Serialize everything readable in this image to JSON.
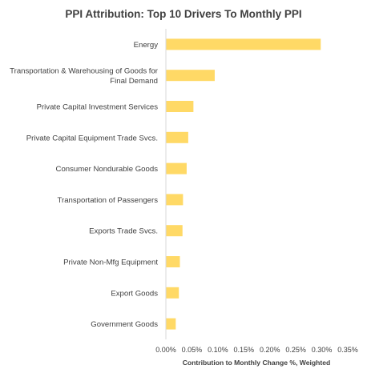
{
  "chart_data": {
    "type": "bar",
    "orientation": "horizontal",
    "title": "PPI Attribution: Top 10 Drivers To Monthly PPI",
    "xlabel": "Contribution to Monthly Change %, Weighted",
    "ylabel": "",
    "xlim": [
      0,
      0.35
    ],
    "x_ticks": [
      0,
      0.05,
      0.1,
      0.15,
      0.2,
      0.25,
      0.3,
      0.35
    ],
    "x_tick_labels": [
      "0.00%",
      "0.05%",
      "0.10%",
      "0.15%",
      "0.20%",
      "0.25%",
      "0.30%",
      "0.35%"
    ],
    "categories": [
      [
        "Energy"
      ],
      [
        "Transportation & Warehousing of Goods for",
        "Final Demand"
      ],
      [
        "Private Capital Investment Services"
      ],
      [
        "Private Capital Equipment Trade Svcs."
      ],
      [
        "Consumer Nondurable Goods"
      ],
      [
        "Transportation of Passengers"
      ],
      [
        "Exports Trade Svcs."
      ],
      [
        "Private Non-Mfg Equipment"
      ],
      [
        "Export Goods"
      ],
      [
        "Government Goods"
      ]
    ],
    "values": [
      0.298,
      0.094,
      0.053,
      0.043,
      0.04,
      0.033,
      0.032,
      0.027,
      0.025,
      0.019
    ],
    "bar_color": "#FFD966",
    "axis_color": "#D9D9D9",
    "grid": false,
    "legend": "none"
  }
}
